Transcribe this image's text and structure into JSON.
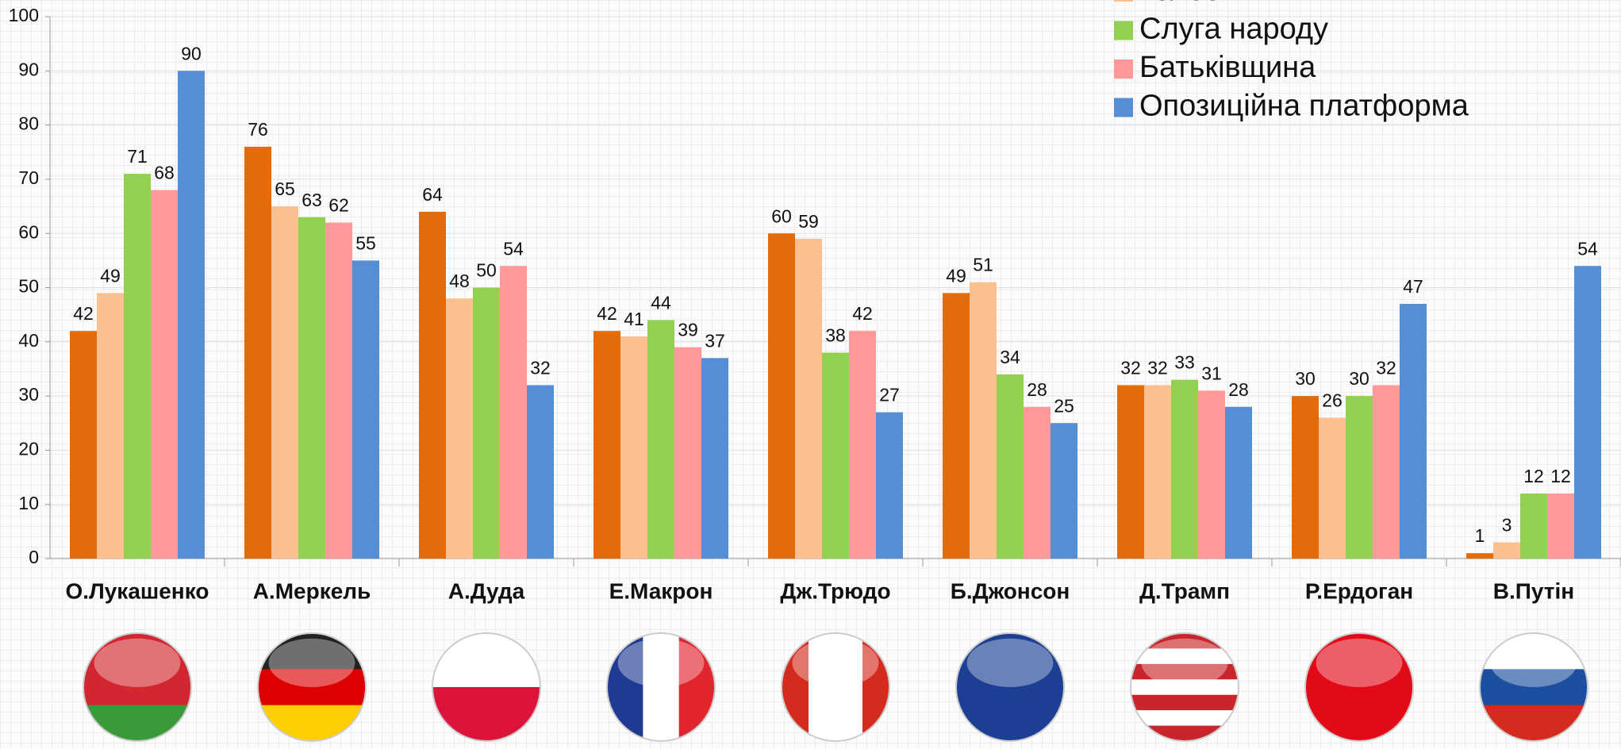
{
  "chart_data": {
    "type": "bar",
    "categories": [
      "О.Лукашенко",
      "А.Меркель",
      "А.Дуда",
      "Е.Макрон",
      "Дж.Трюдо",
      "Б.Джонсон",
      "Д.Трамп",
      "Р.Ердоган",
      "В.Путін"
    ],
    "series": [
      {
        "color": "#e36c0a",
        "values": [
          42,
          76,
          64,
          42,
          60,
          49,
          32,
          30,
          1
        ]
      },
      {
        "name": "Голос",
        "color": "#fac090",
        "values": [
          49,
          65,
          48,
          41,
          59,
          51,
          32,
          26,
          3
        ]
      },
      {
        "name": "Слуга народу",
        "color": "#92d050",
        "values": [
          71,
          63,
          50,
          44,
          38,
          34,
          33,
          30,
          12
        ]
      },
      {
        "name": "Батьківщина",
        "color": "#ff9999",
        "values": [
          68,
          62,
          54,
          39,
          42,
          28,
          31,
          32,
          12
        ]
      },
      {
        "name": "Опозиційна платформа",
        "color": "#558ed5",
        "values": [
          90,
          55,
          32,
          37,
          27,
          25,
          28,
          47,
          54
        ]
      }
    ],
    "ylim": [
      0,
      100
    ],
    "yticks": [
      0,
      10,
      20,
      30,
      40,
      50,
      60,
      70,
      80,
      90,
      100
    ],
    "grid": true
  }
}
